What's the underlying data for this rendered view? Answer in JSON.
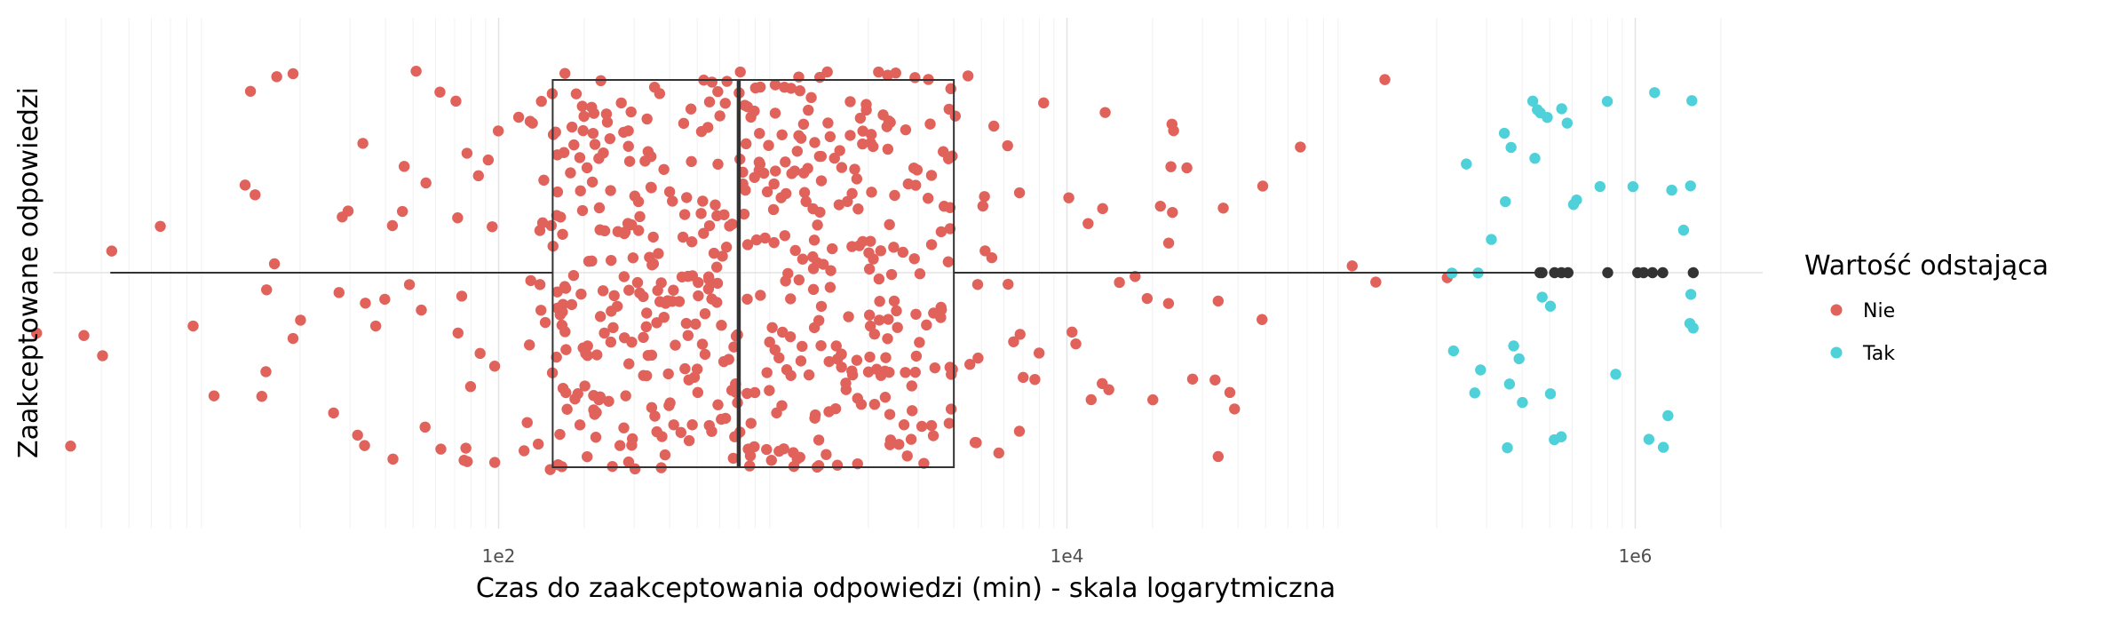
{
  "chart_data": {
    "type": "boxplot-jitter",
    "xlabel": "Czas do zaakceptowania odpowiedzi (min) - skala logarytmiczna",
    "ylabel": "Zaakceptowane odpowiedzi",
    "x_scale": "log10",
    "xlim": [
      1.7,
      13000000
    ],
    "x_ticks": [
      {
        "value": 100,
        "label": "1e2"
      },
      {
        "value": 10000,
        "label": "1e4"
      },
      {
        "value": 1000000,
        "label": "1e6"
      }
    ],
    "grid": true,
    "legend": {
      "title": "Wartość odstająca",
      "position": "right",
      "entries": [
        {
          "name": "Nie",
          "color": "#E0625B"
        },
        {
          "name": "Tak",
          "color": "#4FD1D9"
        }
      ]
    },
    "box": {
      "whisker_low": 4.3,
      "q1": 155,
      "median": 700,
      "q3": 4000,
      "whisker_high": 450000,
      "outliers": [
        462000,
        470000,
        520000,
        550000,
        580000,
        800000,
        1020000,
        1070000,
        1150000,
        1250000,
        1600000
      ]
    },
    "outlier_color": "#333333",
    "series": [
      {
        "name": "Nie",
        "color": "#E0625B",
        "n": 620,
        "x_range": [
          1.7,
          220000
        ]
      },
      {
        "name": "Tak",
        "color": "#4FD1D9",
        "n": 44,
        "x_range": [
          220000,
          1600000
        ]
      }
    ]
  }
}
